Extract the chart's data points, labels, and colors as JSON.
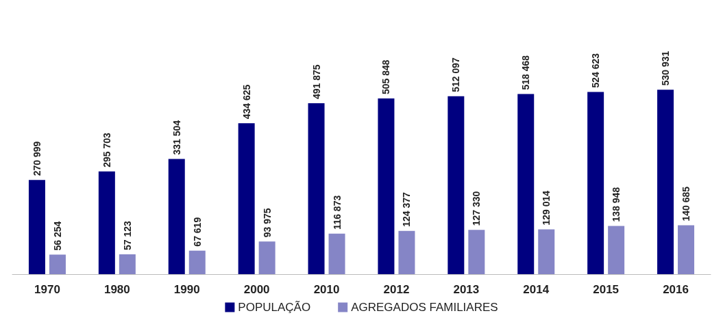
{
  "chart_data": {
    "type": "bar",
    "categories": [
      "1970",
      "1980",
      "1990",
      "2000",
      "2010",
      "2012",
      "2013",
      "2014",
      "2015",
      "2016"
    ],
    "legend": "bottom",
    "grid": false,
    "series": [
      {
        "name": "POPULAÇÃO",
        "color": "#000080",
        "values": [
          270999,
          295703,
          331504,
          434625,
          491875,
          505848,
          512097,
          518468,
          524623,
          530931
        ],
        "value_labels": [
          "270 999",
          "295 703",
          "331 504",
          "434 625",
          "491 875",
          "505 848",
          "512 097",
          "518 468",
          "524 623",
          "530 931"
        ]
      },
      {
        "name": "AGREGADOS FAMILIARES",
        "color": "#8585c6",
        "values": [
          56254,
          57123,
          67619,
          93975,
          116873,
          124377,
          127330,
          129014,
          138948,
          140685
        ],
        "value_labels": [
          "56 254",
          "57 123",
          "67 619",
          "93 975",
          "116 873",
          "124 377",
          "127 330",
          "129 014",
          "138 948",
          "140 685"
        ]
      }
    ]
  }
}
